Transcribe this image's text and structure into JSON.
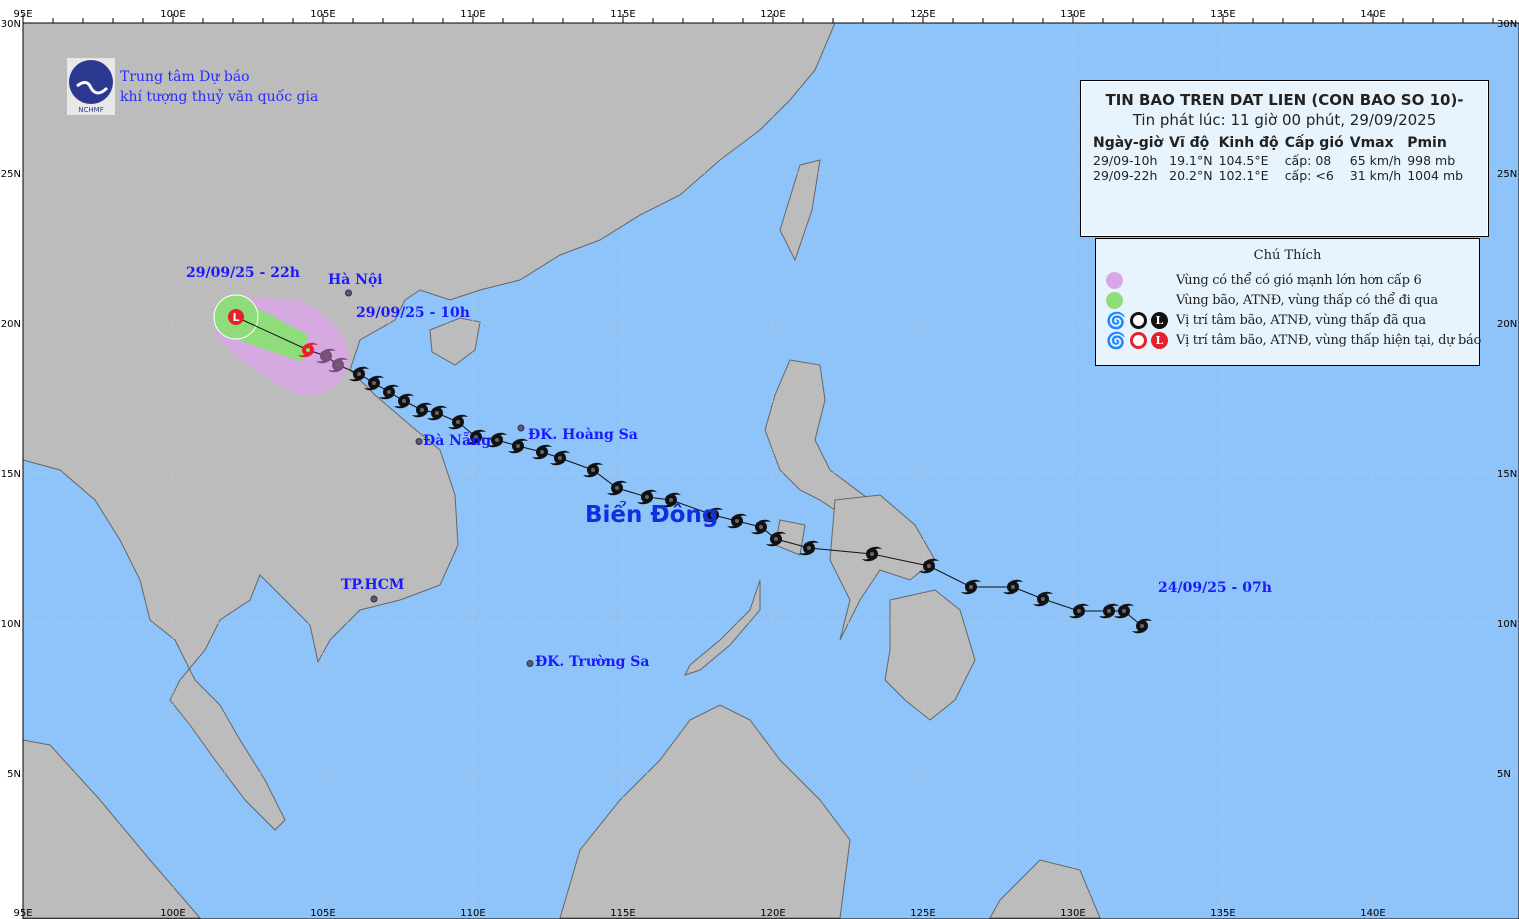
{
  "colors": {
    "ocean": "#8ec4f9",
    "land": "#bcbcbc",
    "wind_zone": "#d9a7e6",
    "storm_zone": "#8fdc7a",
    "current": "#e8202a",
    "past": "#111111",
    "label": "#1a1aff"
  },
  "axes": {
    "lon_labels": [
      "95E",
      "100E",
      "105E",
      "110E",
      "115E",
      "120E",
      "125E",
      "130E",
      "135E",
      "140E"
    ],
    "lat_labels": [
      "30N",
      "25N",
      "20N",
      "15N",
      "10N",
      "5N"
    ]
  },
  "organization": {
    "line1": "Trung tâm Dự báo",
    "line2": "khí tượng thuỷ văn quốc gia",
    "logo_text": "NCHMF"
  },
  "bulletin": {
    "title": "TIN BAO TREN DAT LIEN (CON BAO SO 10)-",
    "issued": "Tin phát lúc: 11 giờ 00 phút, 29/09/2025",
    "columns": [
      "Ngày-giờ",
      "Vĩ độ",
      "Kinh độ",
      "Cấp gió",
      "Vmax",
      "Pmin"
    ],
    "rows": [
      [
        "29/09-10h",
        "19.1°N",
        "104.5°E",
        "cấp: 08",
        "65 km/h",
        "998 mb"
      ],
      [
        "29/09-22h",
        "20.2°N",
        "102.1°E",
        "cấp: <6",
        "31 km/h",
        "1004 mb"
      ]
    ]
  },
  "legend": {
    "title": "Chú Thích",
    "items": [
      {
        "icon": "purple-circle",
        "label": "Vùng có thể có gió mạnh lớn hơn cấp 6"
      },
      {
        "icon": "green-circle",
        "label": "Vùng bão, ATNĐ, vùng thấp có thể đi qua"
      },
      {
        "icon": "black-storm-symbols",
        "label": "Vị trí tâm bão, ATNĐ, vùng thấp đã qua"
      },
      {
        "icon": "red-storm-symbols",
        "label": "Vị trí tâm bão, ATNĐ, vùng thấp hiện tại, dự báo"
      }
    ]
  },
  "places": {
    "hanoi": "Hà Nội",
    "danang": "Đà Nẵng",
    "hoangsa": "ĐK. Hoàng Sa",
    "truongsa": "ĐK. Trường Sa",
    "hcm": "TP.HCM",
    "sea": "Biển Đông"
  },
  "track_labels": {
    "start": "24/09/25 - 07h",
    "current": "29/09/25 - 10h",
    "forecast": "29/09/25 - 22h"
  },
  "track": {
    "past": [
      [
        132.3,
        9.9
      ],
      [
        131.7,
        10.4
      ],
      [
        131.2,
        10.4
      ],
      [
        130.2,
        10.4
      ],
      [
        129.0,
        10.8
      ],
      [
        128.0,
        11.2
      ],
      [
        126.6,
        11.2
      ],
      [
        125.2,
        11.9
      ],
      [
        123.3,
        12.3
      ],
      [
        121.2,
        12.5
      ],
      [
        120.1,
        12.8
      ],
      [
        119.6,
        13.2
      ],
      [
        118.8,
        13.4
      ],
      [
        118.0,
        13.6
      ],
      [
        116.6,
        14.1
      ],
      [
        115.8,
        14.2
      ],
      [
        114.8,
        14.5
      ],
      [
        114.0,
        15.1
      ],
      [
        112.9,
        15.5
      ],
      [
        112.3,
        15.7
      ],
      [
        111.5,
        15.9
      ],
      [
        110.8,
        16.1
      ],
      [
        110.1,
        16.2
      ],
      [
        109.5,
        16.7
      ],
      [
        108.8,
        17.0
      ],
      [
        108.3,
        17.1
      ],
      [
        107.7,
        17.4
      ],
      [
        107.2,
        17.7
      ],
      [
        106.7,
        18.0
      ],
      [
        106.2,
        18.3
      ]
    ],
    "past_overland": [
      [
        105.5,
        18.6
      ],
      [
        105.1,
        18.9
      ]
    ],
    "current": {
      "lon": 104.5,
      "lat": 19.1
    },
    "forecast": {
      "lon": 102.1,
      "lat": 20.2
    }
  }
}
